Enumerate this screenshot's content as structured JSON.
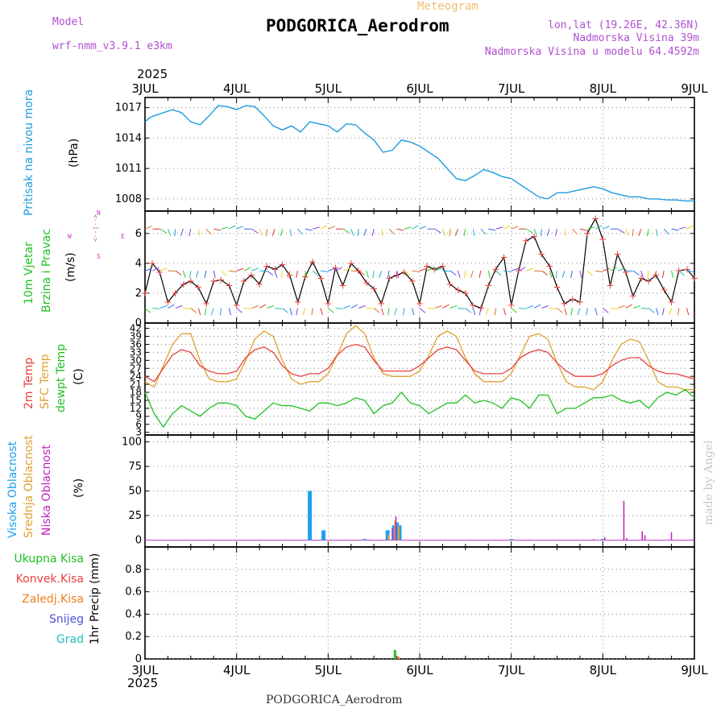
{
  "header": {
    "model_label": "Model",
    "model_name": "wrf-nmm_v3.9.1 e3km",
    "title": "PODGORICA_Aerodrom",
    "meteogram": "Meteogram",
    "lonlat": "lon,lat (19.26E, 42.36N)",
    "elevation": "Nadmorska Visina 39m",
    "model_elevation": "Nadmorska Visina u modelu 64.4592m",
    "footer": "PODGORICA_Aerodrom",
    "credit": "made by Angel"
  },
  "colors": {
    "pressure": "#1e9be0",
    "temp2m": "#e84040",
    "sfc": "#e0a030",
    "dewpt": "#20c020",
    "high_cloud": "#1ea0f0",
    "mid_cloud": "#e0a030",
    "low_cloud": "#c020c0",
    "total_precip": "#20c020",
    "conv_precip": "#e84040",
    "frozen": "#f08020",
    "snow": "#5050e0",
    "hail": "#20c0c0",
    "wind_barb_dir": "#c040c0"
  },
  "chart_data": [
    {
      "type": "line",
      "panel": "pressure",
      "title": "Pritisak na nivou mora",
      "ylabel": "(hPa)",
      "year_label": "2025",
      "x_tick_labels": [
        "3JUL",
        "4JUL",
        "5JUL",
        "6JUL",
        "7JUL",
        "8JUL",
        "9JUL"
      ],
      "ylim": [
        1006.8,
        1018.0
      ],
      "y_ticks": [
        1008,
        1011,
        1014,
        1017
      ],
      "x": [
        0,
        0.05,
        0.1,
        0.2,
        0.3,
        0.4,
        0.5,
        0.6,
        0.7,
        0.8,
        0.9,
        1.0,
        1.1,
        1.2,
        1.3,
        1.4,
        1.5,
        1.6,
        1.7,
        1.8,
        1.9,
        2.0,
        2.1,
        2.2,
        2.3,
        2.4,
        2.5,
        2.6,
        2.7,
        2.8,
        2.9,
        3.0,
        3.1,
        3.2,
        3.3,
        3.4,
        3.5,
        3.6,
        3.7,
        3.8,
        3.9,
        4.0,
        4.1,
        4.2,
        4.3,
        4.4,
        4.5,
        4.6,
        4.7,
        4.8,
        4.9,
        5.0,
        5.1,
        5.2,
        5.3,
        5.4,
        5.5,
        5.6,
        5.7,
        5.8,
        5.9,
        6.0
      ],
      "values": [
        1015.6,
        1016.0,
        1016.2,
        1016.5,
        1016.8,
        1016.5,
        1015.6,
        1015.3,
        1016.2,
        1017.2,
        1017.1,
        1016.8,
        1017.2,
        1017.1,
        1016.2,
        1015.2,
        1014.8,
        1015.2,
        1014.6,
        1015.6,
        1015.4,
        1015.2,
        1014.6,
        1015.4,
        1015.3,
        1014.5,
        1013.8,
        1012.6,
        1012.8,
        1013.8,
        1013.6,
        1013.2,
        1012.6,
        1012.0,
        1011.0,
        1010.0,
        1009.8,
        1010.3,
        1010.9,
        1010.6,
        1010.2,
        1010.0,
        1009.4,
        1008.8,
        1008.2,
        1008.0,
        1008.6,
        1008.6,
        1008.8,
        1009.0,
        1009.2,
        1009.0,
        1008.6,
        1008.4,
        1008.2,
        1008.2,
        1008.0,
        1008.0,
        1007.9,
        1007.9,
        1007.8,
        1007.8
      ]
    },
    {
      "type": "line",
      "panel": "wind",
      "title": "10m Vjetar",
      "title2": "Brzina i Pravac",
      "ylabel": "(m/s)",
      "compass": [
        "W",
        "<--|-->",
        "E",
        "N",
        "^",
        "|",
        "v",
        "S"
      ],
      "ylim": [
        0,
        7.5
      ],
      "y_ticks": [
        0,
        2,
        4,
        6
      ],
      "x": [
        0,
        0.08,
        0.16,
        0.25,
        0.33,
        0.42,
        0.5,
        0.58,
        0.67,
        0.75,
        0.83,
        0.92,
        1.0,
        1.08,
        1.16,
        1.25,
        1.33,
        1.42,
        1.5,
        1.58,
        1.67,
        1.75,
        1.83,
        1.92,
        2.0,
        2.08,
        2.16,
        2.25,
        2.33,
        2.42,
        2.5,
        2.58,
        2.67,
        2.75,
        2.83,
        2.92,
        3.0,
        3.08,
        3.16,
        3.25,
        3.33,
        3.42,
        3.5,
        3.58,
        3.67,
        3.75,
        3.83,
        3.92,
        4.0,
        4.08,
        4.16,
        4.25,
        4.33,
        4.42,
        4.5,
        4.58,
        4.67,
        4.75,
        4.83,
        4.92,
        5.0,
        5.08,
        5.16,
        5.25,
        5.33,
        5.42,
        5.5,
        5.58,
        5.67,
        5.75,
        5.83,
        5.92,
        6.0
      ],
      "values": [
        2.0,
        4.0,
        3.4,
        1.4,
        2.0,
        2.6,
        2.8,
        2.4,
        1.3,
        2.8,
        2.9,
        2.5,
        1.2,
        2.8,
        3.2,
        2.6,
        3.8,
        3.6,
        3.9,
        3.2,
        1.4,
        3.1,
        4.1,
        3.0,
        1.3,
        3.7,
        2.5,
        4.0,
        3.5,
        2.7,
        2.3,
        1.3,
        3.0,
        3.2,
        3.4,
        2.8,
        1.3,
        3.8,
        3.6,
        3.8,
        2.6,
        2.2,
        2.0,
        1.2,
        1.0,
        2.5,
        3.6,
        4.4,
        1.2,
        3.5,
        5.5,
        5.8,
        4.6,
        3.8,
        2.4,
        1.3,
        1.6,
        1.4,
        6.0,
        7.0,
        5.6,
        2.5,
        4.6,
        3.4,
        1.8,
        3.0,
        2.8,
        3.2,
        2.2,
        1.4,
        3.5,
        3.6,
        3.0
      ]
    },
    {
      "type": "line",
      "panel": "temperature",
      "title": "2m Temp",
      "title2": "SFC Temp",
      "title3": "dewpt Temp",
      "ylabel": "(C)",
      "ylim": [
        2,
        44
      ],
      "y_ticks": [
        3,
        6,
        9,
        12,
        15,
        18,
        21,
        24,
        27,
        30,
        33,
        36,
        39,
        42
      ],
      "x": [
        0,
        0.1,
        0.2,
        0.3,
        0.4,
        0.5,
        0.6,
        0.7,
        0.8,
        0.9,
        1.0,
        1.1,
        1.2,
        1.3,
        1.4,
        1.5,
        1.6,
        1.7,
        1.8,
        1.9,
        2.0,
        2.1,
        2.2,
        2.3,
        2.4,
        2.5,
        2.6,
        2.7,
        2.8,
        2.9,
        3.0,
        3.1,
        3.2,
        3.3,
        3.4,
        3.5,
        3.6,
        3.7,
        3.8,
        3.9,
        4.0,
        4.1,
        4.2,
        4.3,
        4.4,
        4.5,
        4.6,
        4.7,
        4.8,
        4.9,
        5.0,
        5.1,
        5.2,
        5.3,
        5.4,
        5.5,
        5.6,
        5.7,
        5.8,
        5.9,
        6.0
      ],
      "series": [
        {
          "name": "2m Temp",
          "values": [
            24,
            22,
            27,
            32,
            34,
            33,
            28,
            26,
            25,
            25,
            26,
            31,
            34,
            35,
            33,
            28,
            25,
            24,
            25,
            25,
            27,
            32,
            35,
            36,
            35,
            30,
            26,
            26,
            26,
            26,
            28,
            31,
            34,
            35,
            34,
            30,
            26,
            25,
            25,
            25,
            27,
            31,
            33,
            34,
            33,
            29,
            26,
            24,
            24,
            24,
            25,
            28,
            30,
            31,
            31,
            28,
            26,
            25,
            25,
            24,
            23
          ]
        },
        {
          "name": "SFC Temp",
          "values": [
            22,
            20,
            28,
            36,
            40,
            40,
            30,
            23,
            22,
            22,
            23,
            30,
            38,
            41,
            39,
            30,
            23,
            21,
            22,
            22,
            25,
            32,
            40,
            43,
            40,
            31,
            25,
            24,
            24,
            24,
            26,
            32,
            39,
            41,
            39,
            31,
            25,
            22,
            22,
            22,
            25,
            32,
            39,
            40,
            38,
            29,
            22,
            20,
            20,
            19,
            22,
            30,
            36,
            38,
            37,
            30,
            22,
            20,
            20,
            19,
            19
          ]
        },
        {
          "name": "dewpt Temp",
          "values": [
            18,
            10,
            5,
            10,
            13,
            11,
            9,
            12,
            14,
            14,
            13,
            9,
            8,
            11,
            14,
            13,
            13,
            12,
            11,
            14,
            14,
            13,
            14,
            16,
            15,
            10,
            13,
            14,
            18,
            14,
            13,
            10,
            12,
            14,
            14,
            17,
            14,
            15,
            14,
            12,
            16,
            15,
            12,
            17,
            17,
            10,
            12,
            12,
            14,
            16,
            16,
            17,
            15,
            14,
            15,
            12,
            16,
            18,
            17,
            19,
            16
          ]
        }
      ]
    },
    {
      "type": "bar",
      "panel": "cloud",
      "title": "Visoka Oblacnost",
      "title2": "Srednja Oblacnost",
      "title3": "Niska Oblacnost",
      "ylabel": "(%)",
      "ylim": [
        -7,
        107
      ],
      "y_ticks": [
        0,
        25,
        50,
        75,
        100
      ],
      "series": [
        {
          "name": "Visoka Oblacnost",
          "x": [
            1.8,
            1.95,
            2.4,
            2.65,
            2.72,
            2.75,
            2.78,
            4.0,
            5.0
          ],
          "values": [
            50,
            10,
            1,
            10,
            15,
            18,
            15,
            1,
            1
          ]
        },
        {
          "name": "Srednja Oblacnost",
          "x": [
            2.66,
            2.73,
            2.77
          ],
          "values": [
            6,
            20,
            14
          ]
        },
        {
          "name": "Niska Oblacnost",
          "x": [
            2.7,
            2.74,
            4.9,
            5.02,
            5.23,
            5.26,
            5.43,
            5.46,
            5.75
          ],
          "values": [
            12,
            24,
            1,
            3,
            40,
            2,
            9,
            5,
            8
          ]
        }
      ]
    },
    {
      "type": "bar",
      "panel": "precip",
      "title": "Ukupna Kisa",
      "title2": "Konvek.Kisa",
      "title3": "Zaledj.Kisa",
      "title4": "Snijeg",
      "title5": "Grad",
      "ylabel": "1hr Precip (mm)",
      "year_label": "2025",
      "x_tick_labels": [
        "3JUL",
        "4JUL",
        "5JUL",
        "6JUL",
        "7JUL",
        "8JUL",
        "9JUL"
      ],
      "ylim": [
        0,
        1.0
      ],
      "y_ticks": [
        0,
        0.2,
        0.4,
        0.6,
        0.8
      ],
      "series": [
        {
          "name": "Ukupna Kisa",
          "x": [
            2.73
          ],
          "values": [
            0.08
          ]
        },
        {
          "name": "Konvek.Kisa",
          "x": [
            2.76
          ],
          "values": [
            0.02
          ]
        },
        {
          "name": "Zaledj.Kisa",
          "x": [
            2.77
          ],
          "values": [
            0.01
          ]
        }
      ]
    }
  ]
}
